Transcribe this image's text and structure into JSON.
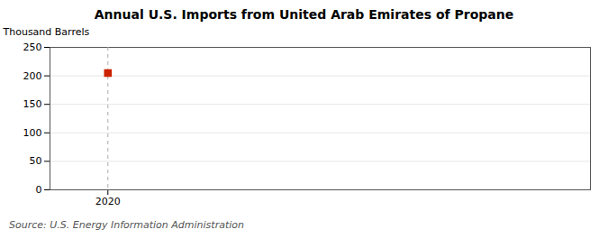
{
  "chart_data": {
    "type": "scatter",
    "title": "Annual U.S. Imports from United Arab Emirates of Propane",
    "ylabel": "Thousand Barrels",
    "annotations": [
      "Source: U.S. Energy Information Administration"
    ],
    "x": [
      2020
    ],
    "values": [
      205
    ],
    "color": "#cc2200",
    "marker": "square",
    "xlim": [
      2019.4,
      2025.0
    ],
    "xticks": [
      2020
    ],
    "ylim": [
      0,
      250
    ],
    "yticks": [
      0,
      50,
      100,
      150,
      200,
      250
    ],
    "grid": true
  }
}
